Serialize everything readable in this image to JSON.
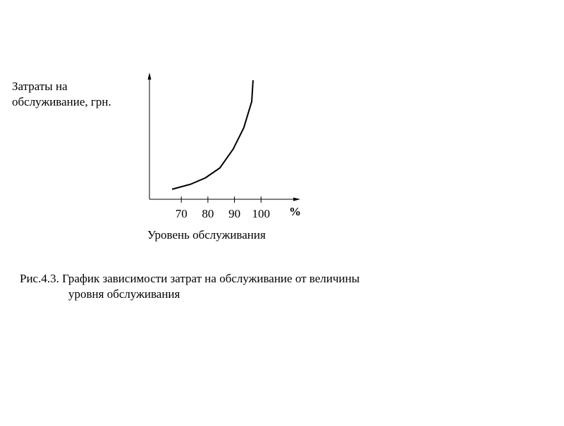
{
  "chart_data": {
    "type": "line",
    "y_label_lines": [
      "Затраты на",
      "обслуживание, грн."
    ],
    "x_label": "Уровень обслуживания",
    "x_unit": "%",
    "caption_lines": [
      "Рис.4.3. График зависимости затрат на обслуживание от величины",
      "уровня обслуживания"
    ],
    "x": [
      66.5,
      73.5,
      79,
      84.5,
      89.5,
      93.5,
      96.5,
      97
    ],
    "values": [
      8,
      12,
      17,
      25,
      40,
      57,
      78,
      95
    ],
    "color": "#000000",
    "xlim": [
      58,
      114
    ],
    "ylim": [
      0,
      100
    ],
    "xticks": [
      70,
      80,
      90,
      100
    ]
  }
}
